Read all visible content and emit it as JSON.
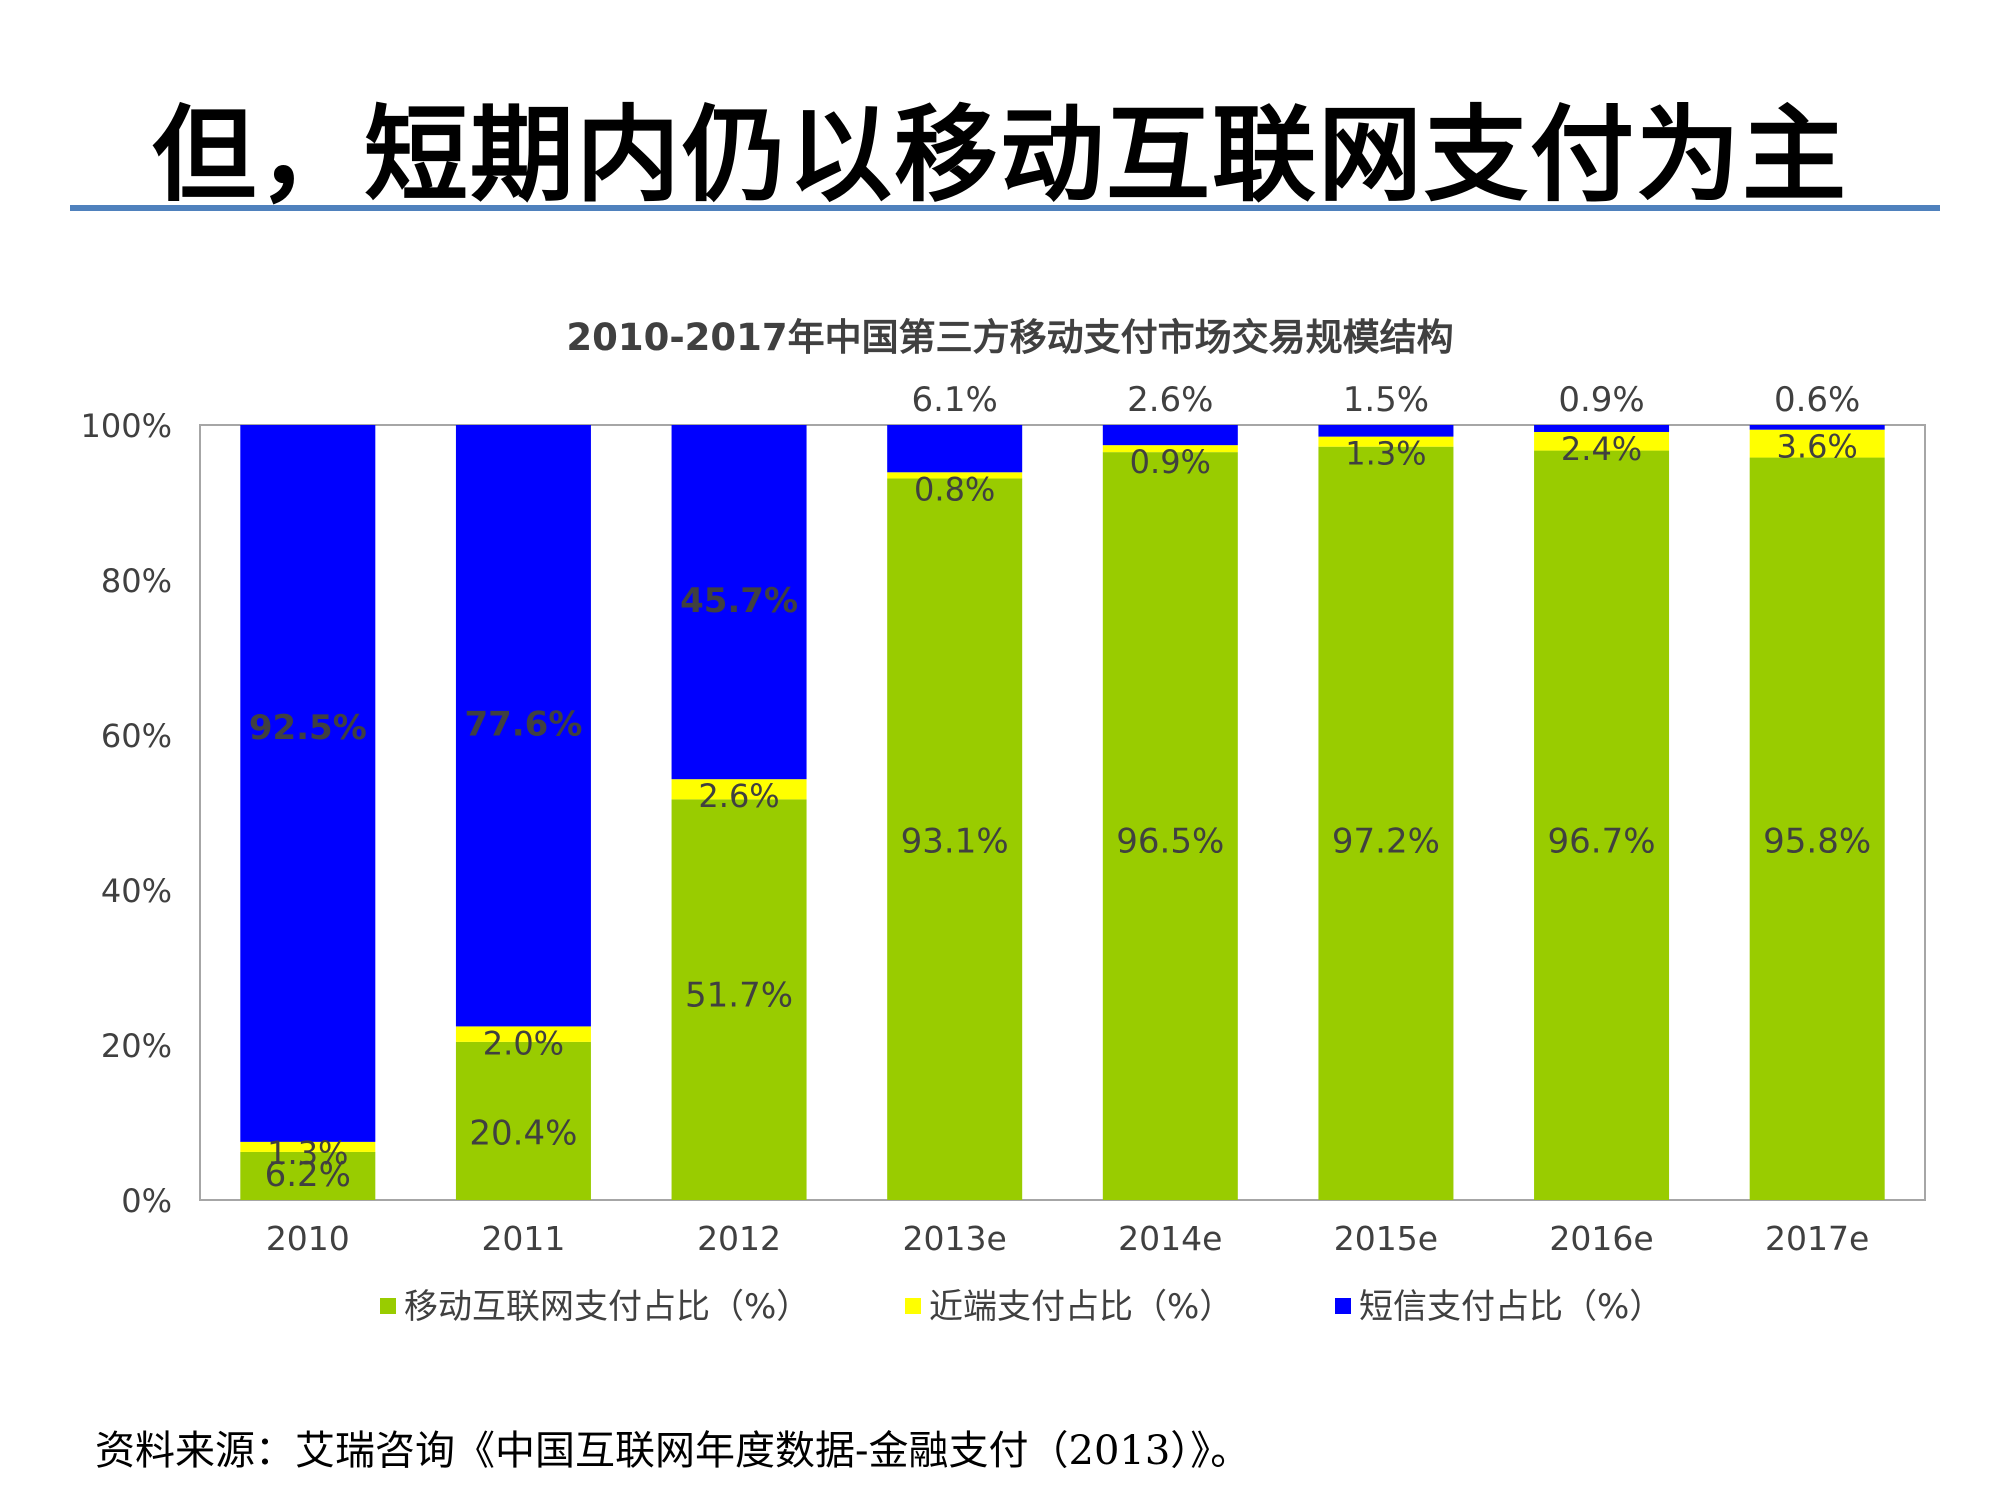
{
  "slide": {
    "title": "但，短期内仍以移动互联网支付为主",
    "source": "资料来源：艾瑞咨询《中国互联网年度数据-金融支付（2013）》。"
  },
  "chart_data": {
    "type": "bar",
    "stacked": true,
    "title": "2010-2017年中国第三方移动支付市场交易规模结构",
    "xlabel": "",
    "ylabel": "",
    "ylim": [
      0,
      100
    ],
    "yticks": [
      "0%",
      "20%",
      "40%",
      "60%",
      "80%",
      "100%"
    ],
    "categories": [
      "2010",
      "2011",
      "2012",
      "2013e",
      "2014e",
      "2015e",
      "2016e",
      "2017e"
    ],
    "series": [
      {
        "name": "移动互联网支付占比（%）",
        "color": "#99cc00",
        "values": [
          6.2,
          20.4,
          51.7,
          93.1,
          96.5,
          97.2,
          96.7,
          95.8
        ],
        "labels": [
          "6.2%",
          "20.4%",
          "51.7%",
          "93.1%",
          "96.5%",
          "97.2%",
          "96.7%",
          "95.8%"
        ]
      },
      {
        "name": "近端支付占比（%）",
        "color": "#ffff00",
        "values": [
          1.3,
          2.0,
          2.6,
          0.8,
          0.9,
          1.3,
          2.4,
          3.6
        ],
        "labels": [
          "1.3%",
          "2.0%",
          "2.6%",
          "0.8%",
          "0.9%",
          "1.3%",
          "2.4%",
          "3.6%"
        ]
      },
      {
        "name": "短信支付占比（%）",
        "color": "#0000ff",
        "values": [
          92.5,
          77.6,
          45.7,
          6.1,
          2.6,
          1.5,
          0.9,
          0.6
        ],
        "labels": [
          "92.5%",
          "77.6%",
          "45.7%",
          "6.1%",
          "2.6%",
          "1.5%",
          "0.9%",
          "0.6%"
        ]
      }
    ],
    "legend": "bottom",
    "grid": false
  }
}
